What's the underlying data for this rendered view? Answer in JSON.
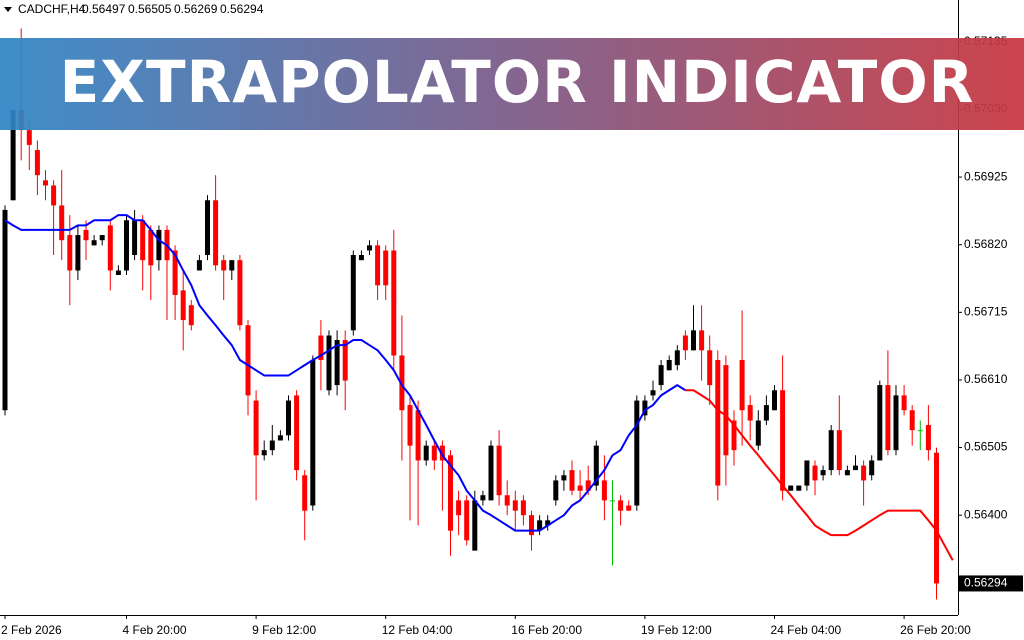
{
  "chart_data": {
    "type": "candlestick",
    "title": "EXTRAPOLATOR INDICATOR",
    "symbol": "CADCHF,H4",
    "up_color": "#000000",
    "down_color": "#ff0000",
    "doji_color": "#00c000",
    "ylim": [
      0.56245,
      0.572
    ],
    "yticks": [
      0.57135,
      {
        "value": 0.5703,
        "label": "0.57030"
      },
      0.56925,
      {
        "value": 0.5682,
        "label": "0.56820"
      },
      0.56715,
      {
        "value": 0.5661,
        "label": "0.56610"
      },
      0.56505,
      {
        "value": 0.564,
        "label": "0.56400"
      }
    ],
    "categories": [
      "2 Feb 2026",
      null,
      null,
      null,
      null,
      null,
      null,
      null,
      null,
      null,
      null,
      null,
      null,
      null,
      null,
      "4 Feb 20:00",
      null,
      null,
      null,
      null,
      null,
      null,
      null,
      null,
      null,
      null,
      null,
      null,
      null,
      null,
      null,
      "9 Feb 12:00",
      null,
      null,
      null,
      null,
      null,
      null,
      null,
      null,
      null,
      null,
      null,
      null,
      null,
      null,
      null,
      "12 Feb 04:00",
      null,
      null,
      null,
      null,
      null,
      null,
      null,
      null,
      null,
      null,
      null,
      null,
      null,
      null,
      null,
      "16 Feb 20:00",
      null,
      null,
      null,
      null,
      null,
      null,
      null,
      null,
      null,
      null,
      null,
      null,
      null,
      null,
      null,
      "19 Feb 12:00",
      null,
      null,
      null,
      null,
      null,
      null,
      null,
      null,
      null,
      null,
      null,
      null,
      null,
      null,
      null,
      "24 Feb 04:00",
      null,
      null,
      null,
      null,
      null,
      null,
      null,
      null,
      null,
      null,
      null,
      null,
      null,
      null,
      null,
      "26 Feb 20:00",
      null,
      null,
      null,
      null,
      null,
      null
    ],
    "open": [
      0.56563,
      0.56889,
      0.57029,
      0.56998,
      0.56967,
      0.5692,
      0.56912,
      0.56881,
      0.56835,
      0.5678,
      0.56843,
      0.56819,
      0.56827,
      0.5685,
      0.56773,
      0.5678,
      0.56804,
      0.56858,
      0.56843,
      0.56796,
      0.56843,
      0.56811,
      0.56749,
      0.56726,
      0.5678,
      0.56804,
      0.56889,
      0.56796,
      0.5678,
      0.56796,
      0.56695,
      0.56578,
      0.56493,
      0.56501,
      0.56516,
      0.56524,
      0.56586,
      0.56462,
      0.56415,
      0.56679,
      0.56594,
      0.56602,
      0.56672,
      0.56687,
      0.56796,
      0.56811,
      0.56819,
      0.56811,
      0.56811,
      0.56648,
      0.56571,
      0.56563,
      0.56485,
      0.56508,
      0.56508,
      0.56493,
      0.56423,
      0.56423,
      0.56345,
      0.56423,
      0.56423,
      0.56508,
      0.56431,
      0.56423,
      0.56423,
      0.564,
      0.56376,
      0.56384,
      0.56423,
      0.56454,
      0.5647,
      0.56446,
      0.56454,
      0.56446,
      0.56454,
      0.56423,
      0.56423,
      0.56415,
      0.56415,
      0.56555,
      0.56586,
      0.56602,
      0.56625,
      0.56633,
      0.56679,
      0.56656,
      0.56687,
      0.56656,
      0.56641,
      0.56633,
      0.56547,
      0.56641,
      0.56571,
      0.56508,
      0.56547,
      0.56563,
      0.56594,
      0.56438,
      0.56438,
      0.56446,
      0.56477,
      0.56462,
      0.5647,
      0.56532,
      0.56462,
      0.5647,
      0.56477,
      0.56462,
      0.56485,
      0.56602,
      0.56501,
      0.56586,
      0.56563,
      0.56532,
      0.5654,
      0.56497,
      null,
      null
    ],
    "high": [
      0.56881,
      0.57029,
      0.57156,
      0.57014,
      0.56982,
      0.56936,
      0.5692,
      0.56936,
      0.56866,
      0.5685,
      0.56858,
      0.56835,
      0.56835,
      0.56858,
      0.56788,
      0.56866,
      0.56874,
      0.56866,
      0.5685,
      0.5685,
      0.5685,
      0.56819,
      0.5678,
      0.56734,
      0.56804,
      0.56897,
      0.56928,
      0.56804,
      0.56796,
      0.56804,
      0.56703,
      0.56594,
      0.56516,
      0.5654,
      0.56532,
      0.56586,
      0.56594,
      0.5647,
      0.56648,
      0.56703,
      0.56687,
      0.56687,
      0.56687,
      0.56811,
      0.56811,
      0.56827,
      0.56827,
      0.56819,
      0.56843,
      0.5671,
      0.56586,
      0.56578,
      0.56516,
      0.56516,
      0.56516,
      0.56501,
      0.56438,
      0.56431,
      0.56438,
      0.56438,
      0.56516,
      0.56532,
      0.56454,
      0.56438,
      0.56431,
      0.56407,
      0.564,
      0.564,
      0.56462,
      0.5647,
      0.56485,
      0.5647,
      0.56477,
      0.56516,
      0.56493,
      0.56454,
      0.56431,
      0.56423,
      0.56586,
      0.56586,
      0.56609,
      0.56641,
      0.56648,
      0.56664,
      0.56687,
      0.56726,
      0.56726,
      0.56679,
      0.56656,
      0.56648,
      0.56563,
      0.56718,
      0.56586,
      0.56563,
      0.56586,
      0.56602,
      0.56648,
      0.56446,
      0.56446,
      0.56485,
      0.56485,
      0.56477,
      0.5654,
      0.56586,
      0.56477,
      0.56493,
      0.56485,
      0.56493,
      0.56609,
      0.56656,
      0.56602,
      0.56602,
      0.56571,
      0.56547,
      0.56571,
      0.56505,
      null,
      null
    ],
    "low": [
      0.56555,
      0.56889,
      0.56951,
      0.56936,
      0.56897,
      0.56889,
      0.56804,
      0.56796,
      0.56726,
      0.56765,
      0.56796,
      0.56819,
      0.56819,
      0.56749,
      0.56773,
      0.56773,
      0.56796,
      0.56749,
      0.56734,
      0.5678,
      0.56703,
      0.56703,
      0.56656,
      0.56687,
      0.5678,
      0.56796,
      0.5678,
      0.56734,
      0.56765,
      0.56687,
      0.56555,
      0.56423,
      0.56485,
      0.56493,
      0.56516,
      0.56516,
      0.56454,
      0.56361,
      0.56407,
      0.56594,
      0.56586,
      0.56586,
      0.56563,
      0.56679,
      0.56796,
      0.56804,
      0.56734,
      0.56734,
      0.56625,
      0.56485,
      0.56392,
      0.56384,
      0.56477,
      0.5647,
      0.56407,
      0.56337,
      0.56369,
      0.56353,
      0.56345,
      0.56415,
      0.56423,
      0.56415,
      0.564,
      0.56376,
      0.56384,
      0.56345,
      0.56369,
      0.56376,
      0.56415,
      0.56438,
      0.56431,
      0.56423,
      0.56431,
      0.56438,
      0.56392,
      0.56322,
      0.56384,
      0.56407,
      0.56407,
      0.56547,
      0.56578,
      0.56594,
      0.56625,
      0.56625,
      0.56641,
      0.56656,
      0.56609,
      0.56571,
      0.56423,
      0.56446,
      0.56477,
      0.56508,
      0.56516,
      0.56501,
      0.5654,
      0.56563,
      0.56423,
      0.56438,
      0.56438,
      0.56438,
      0.56431,
      0.56454,
      0.56462,
      0.56462,
      0.56462,
      0.5647,
      0.56415,
      0.56454,
      0.56485,
      0.56493,
      0.56493,
      0.56555,
      0.56508,
      0.56501,
      0.56485,
      0.56269,
      null,
      null
    ],
    "close": [
      0.56874,
      0.57029,
      0.56998,
      0.56975,
      0.56928,
      0.56912,
      0.56881,
      0.56827,
      0.5678,
      0.56835,
      0.56827,
      0.56827,
      0.56835,
      0.5678,
      0.5678,
      0.56858,
      0.56858,
      0.56796,
      0.56788,
      0.56843,
      0.56796,
      0.56742,
      0.56703,
      0.56695,
      0.56796,
      0.56889,
      0.56788,
      0.5678,
      0.56796,
      0.56695,
      0.56586,
      0.56493,
      0.56501,
      0.56516,
      0.56524,
      0.56578,
      0.5647,
      0.56407,
      0.56641,
      0.56641,
      0.56679,
      0.56672,
      0.56609,
      0.56804,
      0.56804,
      0.56819,
      0.56757,
      0.56757,
      0.56648,
      0.56563,
      0.56508,
      0.56485,
      0.56508,
      0.56485,
      0.56485,
      0.56376,
      0.564,
      0.56361,
      0.56423,
      0.56431,
      0.56508,
      0.56431,
      0.56415,
      0.56407,
      0.564,
      0.56369,
      0.56392,
      0.56392,
      0.56454,
      0.56462,
      0.56438,
      0.56438,
      0.56438,
      0.56508,
      0.56423,
      0.56423,
      0.56407,
      0.56407,
      0.56578,
      0.56578,
      0.56594,
      0.56633,
      0.56641,
      0.56656,
      0.56656,
      0.56687,
      0.56656,
      0.56602,
      0.56446,
      0.56493,
      0.56501,
      0.56563,
      0.56547,
      0.56547,
      0.56571,
      0.56594,
      0.56438,
      0.56446,
      0.56446,
      0.56485,
      0.56454,
      0.5647,
      0.56532,
      0.5647,
      0.5647,
      0.56477,
      0.56454,
      0.56485,
      0.56602,
      0.56501,
      0.56586,
      0.56563,
      0.56532,
      0.56532,
      0.56501,
      0.56294,
      null,
      null
    ],
    "series": [
      {
        "color": "#0000ff",
        "values": [
          0.56858,
          0.5685,
          0.56843,
          0.56843,
          0.56843,
          0.56843,
          0.56843,
          0.56843,
          0.56843,
          0.5685,
          0.5685,
          0.56858,
          0.56858,
          0.56858,
          0.56866,
          0.56866,
          0.56858,
          0.56858,
          0.56843,
          0.56827,
          0.56819,
          0.56804,
          0.5678,
          0.56757,
          0.56726,
          0.5671,
          0.56695,
          0.56679,
          0.56664,
          0.56641,
          0.56633,
          0.56625,
          0.56617,
          0.56617,
          0.56617,
          0.56617,
          0.56625,
          0.56633,
          0.56641,
          0.56648,
          0.56656,
          0.56664,
          0.56664,
          0.56672,
          0.56672,
          0.56664,
          0.56656,
          0.56641,
          0.56625,
          0.56602,
          0.56586,
          0.56563,
          0.5654,
          0.56516,
          0.56493,
          0.56477,
          0.56462,
          0.56438,
          0.56423,
          0.56407,
          0.564,
          0.56392,
          0.56384,
          0.56376,
          0.56376,
          0.56376,
          0.56376,
          0.56384,
          0.56392,
          0.564,
          0.56415,
          0.56423,
          0.56438,
          0.56454,
          0.5647,
          0.56493,
          0.56501,
          0.56524,
          0.5654,
          0.56563,
          0.56571,
          0.56586,
          0.56594,
          0.56602,
          0.56594,
          null,
          null,
          null,
          null,
          null,
          null,
          null,
          null,
          null,
          null,
          null,
          null,
          null,
          null,
          null,
          null,
          null,
          null,
          null,
          null,
          null,
          null,
          null,
          null,
          null,
          null,
          null,
          null,
          null,
          null,
          null,
          null,
          null
        ]
      },
      {
        "color": "#ff0000",
        "values": [
          null,
          null,
          null,
          null,
          null,
          null,
          null,
          null,
          null,
          null,
          null,
          null,
          null,
          null,
          null,
          null,
          null,
          null,
          null,
          null,
          null,
          null,
          null,
          null,
          null,
          null,
          null,
          null,
          null,
          null,
          null,
          null,
          null,
          null,
          null,
          null,
          null,
          null,
          null,
          null,
          null,
          null,
          null,
          null,
          null,
          null,
          null,
          null,
          null,
          null,
          null,
          null,
          null,
          null,
          null,
          null,
          null,
          null,
          null,
          null,
          null,
          null,
          null,
          null,
          null,
          null,
          null,
          null,
          null,
          null,
          null,
          null,
          null,
          null,
          null,
          null,
          null,
          null,
          null,
          null,
          null,
          null,
          null,
          null,
          0.56594,
          0.56594,
          0.56586,
          0.56578,
          0.56563,
          0.56555,
          0.5654,
          0.56524,
          0.56508,
          0.56493,
          0.56477,
          0.56462,
          0.56446,
          0.56431,
          0.56415,
          0.564,
          0.56384,
          0.56376,
          0.56369,
          0.56369,
          0.56369,
          0.56376,
          0.56384,
          0.56392,
          0.564,
          0.56407,
          0.56407,
          0.56407,
          0.56407,
          0.56407,
          0.56392,
          0.56376,
          0.56353,
          0.5633
        ]
      }
    ]
  }
}
